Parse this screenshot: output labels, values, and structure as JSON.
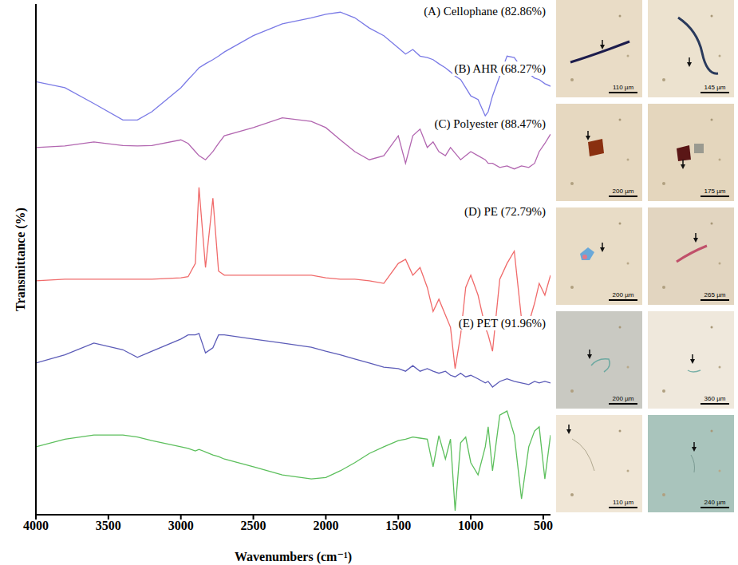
{
  "chart_data": {
    "type": "line",
    "x_label": "Wavenumbers (cm⁻¹)",
    "y_label": "Transmittance (%)",
    "x": [
      4000,
      3800,
      3600,
      3400,
      3300,
      3200,
      3000,
      2950,
      2900,
      2875,
      2830,
      2779,
      2740,
      2700,
      2500,
      2300,
      2100,
      2000,
      1900,
      1800,
      1700,
      1600,
      1500,
      1450,
      1400,
      1350,
      1300,
      1260,
      1220,
      1175,
      1140,
      1108,
      1070,
      1035,
      1000,
      950,
      900,
      880,
      850,
      800,
      750,
      700,
      650,
      600,
      560,
      528,
      489,
      450
    ],
    "series": [
      {
        "name": "(A) Cellophane (82.86%)",
        "color": "#7a7ae6",
        "values": [
          84.8,
          83.6,
          80.5,
          77.3,
          77.3,
          78.9,
          83.6,
          85.2,
          86.7,
          87.5,
          88.3,
          89.1,
          89.8,
          90.6,
          93.8,
          96.1,
          97.3,
          98.0,
          98.4,
          97.3,
          95.3,
          93.8,
          91.4,
          90.2,
          91.1,
          89.8,
          89.5,
          89.1,
          88.3,
          87.5,
          86.7,
          85.9,
          85.2,
          83.6,
          82.0,
          81.3,
          78.1,
          78.9,
          82.0,
          85.9,
          89.8,
          89.5,
          87.5,
          86.4,
          85.5,
          85.2,
          84.4,
          83.9
        ]
      },
      {
        "name": "(B) AHR (68.27%)",
        "color": "#b266b0",
        "values": [
          71.9,
          72.2,
          73.0,
          72.3,
          72.2,
          72.3,
          73.4,
          72.7,
          71.1,
          70.3,
          69.5,
          71.1,
          72.7,
          74.2,
          75.8,
          77.7,
          77.0,
          75.8,
          73.4,
          71.1,
          69.5,
          70.3,
          74.2,
          68.8,
          74.2,
          75.5,
          71.9,
          73.0,
          71.1,
          70.3,
          71.9,
          70.8,
          69.5,
          70.3,
          71.1,
          70.3,
          69.5,
          68.8,
          68.8,
          68.0,
          68.3,
          67.7,
          68.3,
          68.0,
          68.8,
          71.1,
          72.7,
          74.5
        ]
      },
      {
        "name": "(C) Polyester (88.47%)",
        "color": "#f06a6a",
        "values": [
          45.8,
          46.1,
          46.1,
          46.1,
          46.1,
          46.1,
          46.4,
          46.6,
          49.2,
          64.1,
          48.4,
          62.0,
          47.7,
          46.9,
          46.9,
          46.9,
          46.9,
          46.4,
          46.1,
          46.1,
          45.8,
          45.3,
          49.2,
          50.0,
          46.9,
          48.4,
          44.5,
          39.8,
          42.2,
          39.1,
          36.7,
          28.6,
          35.2,
          44.5,
          46.9,
          43.0,
          36.7,
          35.2,
          32.0,
          46.1,
          49.2,
          51.6,
          38.3,
          37.5,
          41.4,
          45.3,
          43.0,
          46.9
        ]
      },
      {
        "name": "(D) PE (72.79%)",
        "color": "#5c5cb8",
        "values": [
          29.7,
          31.3,
          33.6,
          32.3,
          30.8,
          32.0,
          34.4,
          35.2,
          35.2,
          35.5,
          31.7,
          32.7,
          35.2,
          35.2,
          34.4,
          33.6,
          32.8,
          32.0,
          31.3,
          30.5,
          29.7,
          28.9,
          28.6,
          28.1,
          29.2,
          28.1,
          28.6,
          28.1,
          27.7,
          28.1,
          27.3,
          27.0,
          27.7,
          27.0,
          27.3,
          26.6,
          25.8,
          26.1,
          25.0,
          26.1,
          26.6,
          26.1,
          25.8,
          25.5,
          26.1,
          25.8,
          26.1,
          25.8
        ]
      },
      {
        "name": "(E) PET (91.96%)",
        "color": "#5cbf5c",
        "values": [
          13.3,
          14.8,
          15.6,
          15.6,
          15.2,
          14.5,
          13.3,
          13.0,
          12.5,
          12.8,
          12.3,
          11.7,
          11.4,
          10.9,
          9.4,
          7.8,
          7.0,
          7.3,
          8.6,
          10.2,
          12.0,
          13.3,
          14.5,
          14.8,
          15.2,
          15.0,
          14.8,
          9.4,
          15.5,
          10.9,
          14.8,
          0.8,
          14.1,
          15.2,
          10.2,
          7.8,
          13.3,
          17.2,
          8.6,
          19.5,
          20.3,
          15.6,
          3.1,
          13.3,
          16.4,
          17.2,
          7.0,
          15.6
        ]
      }
    ],
    "xlim": [
      4000,
      450
    ],
    "xticks": [
      4000,
      3500,
      3000,
      2500,
      2000,
      1500,
      1000,
      500
    ],
    "ylim": [
      0,
      100
    ],
    "tick_labels": "x",
    "grid": false
  },
  "micrographs": [
    [
      "110 µm",
      "145 µm"
    ],
    [
      "200 µm",
      "175 µm"
    ],
    [
      "200 µm",
      "265 µm"
    ],
    [
      "200 µm",
      "360 µm"
    ],
    [
      "110 µm",
      "240 µm"
    ]
  ]
}
